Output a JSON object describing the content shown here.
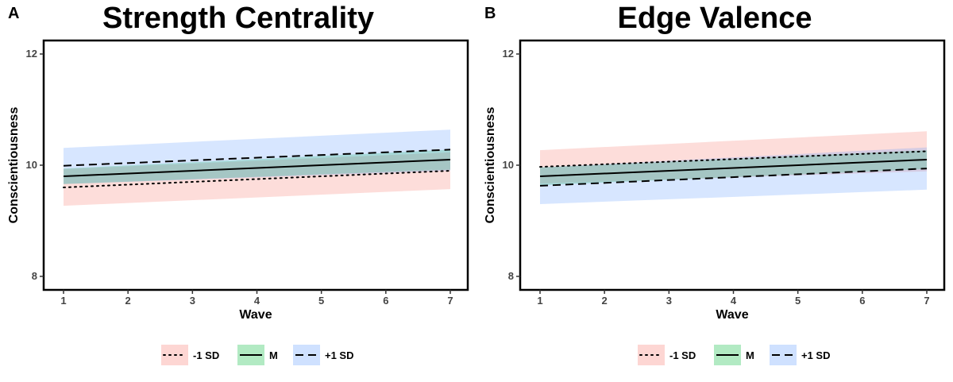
{
  "chart_data": [
    {
      "panel": "A",
      "type": "line",
      "title": "Strength Centrality",
      "xlabel": "Wave",
      "ylabel": "Conscientiousness",
      "xlim": [
        1,
        7
      ],
      "ylim": [
        8,
        12
      ],
      "xticks": [
        1,
        2,
        3,
        4,
        5,
        6,
        7
      ],
      "yticks": [
        8,
        10,
        12
      ],
      "x": [
        1,
        7
      ],
      "series": [
        {
          "name": "-1 SD",
          "linestyle": "dotted",
          "ribbon_color": "#F8766D",
          "values": [
            9.6,
            9.9
          ],
          "lower": [
            9.27,
            9.57
          ],
          "upper": [
            9.93,
            10.23
          ]
        },
        {
          "name": "M",
          "linestyle": "solid",
          "ribbon_color": "#00BA38",
          "values": [
            9.8,
            10.1
          ],
          "lower": [
            9.66,
            9.92
          ],
          "upper": [
            9.94,
            10.28
          ]
        },
        {
          "name": "+1 SD",
          "linestyle": "dashed",
          "ribbon_color": "#619CFF",
          "values": [
            9.99,
            10.28
          ],
          "lower": [
            9.66,
            9.9
          ],
          "upper": [
            10.31,
            10.64
          ]
        }
      ],
      "legend_position": "bottom"
    },
    {
      "panel": "B",
      "type": "line",
      "title": "Edge Valence",
      "xlabel": "Wave",
      "ylabel": "Conscientiousness",
      "xlim": [
        1,
        7
      ],
      "ylim": [
        8,
        12
      ],
      "xticks": [
        1,
        2,
        3,
        4,
        5,
        6,
        7
      ],
      "yticks": [
        8,
        10,
        12
      ],
      "x": [
        1,
        7
      ],
      "series": [
        {
          "name": "-1 SD",
          "linestyle": "dotted",
          "ribbon_color": "#F8766D",
          "values": [
            9.97,
            10.25
          ],
          "lower": [
            9.67,
            9.89
          ],
          "upper": [
            10.27,
            10.61
          ]
        },
        {
          "name": "M",
          "linestyle": "solid",
          "ribbon_color": "#00BA38",
          "values": [
            9.8,
            10.1
          ],
          "lower": [
            9.64,
            9.93
          ],
          "upper": [
            9.96,
            10.27
          ]
        },
        {
          "name": "+1 SD",
          "linestyle": "dashed",
          "ribbon_color": "#619CFF",
          "values": [
            9.63,
            9.94
          ],
          "lower": [
            9.3,
            9.56
          ],
          "upper": [
            9.96,
            10.32
          ]
        }
      ],
      "legend_position": "bottom"
    }
  ]
}
